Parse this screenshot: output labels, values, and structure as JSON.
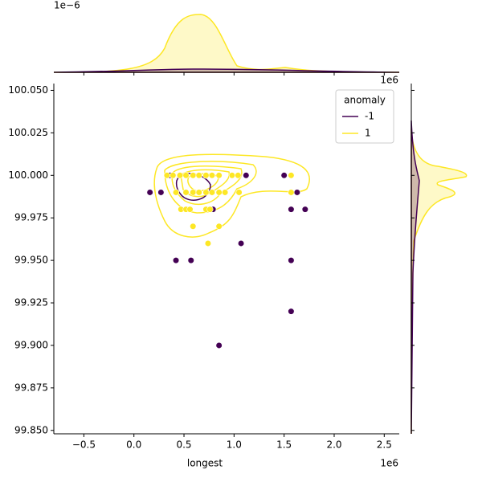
{
  "chart_data": {
    "type": "scatter",
    "x_label": "longest",
    "x_offset": "1e6",
    "y_offset": "1e6",
    "marginal_offset": "1e−6",
    "legend_title": "anomaly",
    "legend_position": "upper right",
    "xlim": [
      -0.8,
      2.65
    ],
    "ylim": [
      99.848,
      100.054
    ],
    "xticks": [
      {
        "value": -0.5,
        "label": "−0.5"
      },
      {
        "value": 0,
        "label": "0.0"
      },
      {
        "value": 0.5,
        "label": "0.5"
      },
      {
        "value": 1,
        "label": "1.0"
      },
      {
        "value": 1.5,
        "label": "1.5"
      },
      {
        "value": 2,
        "label": "2.0"
      },
      {
        "value": 2.5,
        "label": "2.5"
      }
    ],
    "yticks": [
      {
        "value": 99.85,
        "label": "99.850"
      },
      {
        "value": 99.875,
        "label": "99.875"
      },
      {
        "value": 99.9,
        "label": "99.900"
      },
      {
        "value": 99.925,
        "label": "99.925"
      },
      {
        "value": 99.95,
        "label": "99.950"
      },
      {
        "value": 99.975,
        "label": "99.975"
      },
      {
        "value": 100,
        "label": "100.000"
      },
      {
        "value": 100.025,
        "label": "100.025"
      },
      {
        "value": 100.05,
        "label": "100.050"
      }
    ],
    "series": [
      {
        "name": "-1",
        "color": "#440154",
        "x": [
          0.36,
          1.12,
          1.5,
          0.16,
          0.27,
          1.63,
          0.79,
          1.57,
          1.71,
          1.07,
          0.42,
          0.57,
          1.57,
          1.57,
          0.85
        ],
        "values": [
          100.0,
          100.0,
          100.0,
          99.99,
          99.99,
          99.99,
          99.98,
          99.98,
          99.98,
          99.96,
          99.95,
          99.95,
          99.95,
          99.92,
          99.9
        ]
      },
      {
        "name": "1",
        "color": "#fde725",
        "x": [
          0.33,
          0.39,
          0.46,
          0.52,
          0.59,
          0.65,
          0.72,
          0.78,
          0.85,
          0.98,
          1.04,
          1.57,
          0.42,
          0.52,
          0.59,
          0.65,
          0.72,
          0.78,
          0.85,
          0.91,
          1.05,
          1.57,
          0.47,
          0.52,
          0.56,
          0.72,
          0.76,
          0.59,
          0.85,
          0.74
        ],
        "values": [
          100.0,
          100.0,
          100.0,
          100.0,
          100.0,
          100.0,
          100.0,
          100.0,
          100.0,
          100.0,
          100.0,
          100.0,
          99.99,
          99.99,
          99.99,
          99.99,
          99.99,
          99.99,
          99.99,
          99.99,
          99.99,
          99.99,
          99.98,
          99.98,
          99.98,
          99.98,
          99.98,
          99.97,
          99.97,
          99.96
        ]
      }
    ]
  }
}
